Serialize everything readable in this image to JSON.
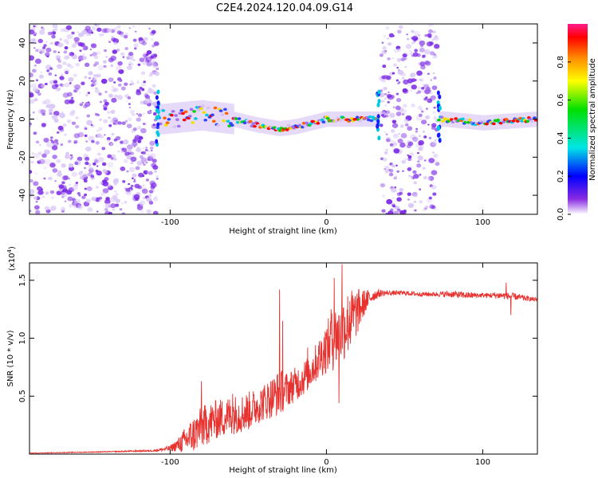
{
  "title": "C2E4.2024.120.04.09.G14",
  "colors": {
    "snr_line": "#e8322f",
    "spectrogram_scatter": "#7a28e6",
    "spectrogram_light": "#d9c6f7",
    "colorbar": [
      "#ff1a8c",
      "#ff0000",
      "#ff8c00",
      "#ffff00",
      "#00e000",
      "#00e6e6",
      "#0000ff",
      "#8a2be2",
      "#ffffff"
    ]
  },
  "chart_data": [
    {
      "type": "heatmap",
      "name_in_figure": "spectrogram",
      "xlabel": "Height of straight line (km)",
      "ylabel": "Frequency (Hz)",
      "xlim": [
        -190,
        135
      ],
      "ylim": [
        -50,
        50
      ],
      "x_ticks": [
        -100,
        0,
        100
      ],
      "y_ticks": [
        -40,
        -20,
        0,
        20,
        40
      ],
      "colorbar": {
        "label": "Normalized spectral amplitude",
        "range": [
          0.0,
          1.0
        ],
        "ticks": [
          0.0,
          0.2,
          0.4,
          0.6,
          0.8
        ]
      },
      "features": [
        {
          "description": "broadband noise",
          "x_range": [
            -190,
            -108
          ],
          "y_range": [
            -50,
            50
          ]
        },
        {
          "description": "signal band",
          "x_range": [
            -108,
            33
          ],
          "center_hz": [
            [
              -105,
              0
            ],
            [
              -80,
              2
            ],
            [
              -60,
              0
            ],
            [
              -45,
              -3
            ],
            [
              -30,
              -5
            ],
            [
              -20,
              -4
            ],
            [
              -10,
              -2
            ],
            [
              0,
              0
            ],
            [
              20,
              0
            ],
            [
              32,
              0
            ]
          ]
        },
        {
          "description": "broadband noise",
          "x_range": [
            35,
            71
          ],
          "y_range": [
            -50,
            50
          ]
        },
        {
          "description": "signal band",
          "x_range": [
            72,
            135
          ],
          "center_hz": [
            [
              75,
              0
            ],
            [
              100,
              -2
            ],
            [
              135,
              0
            ]
          ]
        }
      ]
    },
    {
      "type": "line",
      "name_in_figure": "snr",
      "xlabel": "Height of straight line (km)",
      "ylabel": "SNR (10 * v/v)",
      "y_multiplier_label": "(x10",
      "y_multiplier_exp": "4",
      "xlim": [
        -190,
        135
      ],
      "ylim": [
        0,
        16500
      ],
      "x_ticks": [
        -100,
        0,
        100
      ],
      "y_ticks": [
        5000,
        10000,
        15000
      ],
      "y_tick_labels": [
        "0.5",
        "1.0",
        "1.5"
      ],
      "series": [
        {
          "x": [
            -190,
            -140,
            -110,
            -100,
            -95,
            -90,
            -85,
            -80,
            -75,
            -70,
            -65,
            -60,
            -55,
            -50,
            -45,
            -40,
            -35,
            -30,
            -25,
            -20,
            -15,
            -10,
            -5,
            0,
            5,
            10,
            15,
            20,
            25,
            30,
            35,
            40,
            50,
            60,
            70,
            80,
            90,
            100,
            110,
            120,
            130,
            135
          ],
          "y": [
            80,
            200,
            300,
            500,
            800,
            1200,
            1700,
            2300,
            2700,
            3000,
            3200,
            3400,
            3500,
            3700,
            4100,
            4500,
            4900,
            5300,
            5600,
            6000,
            6500,
            7200,
            8200,
            9200,
            10000,
            10800,
            11500,
            12300,
            13200,
            13700,
            13900,
            13900,
            13900,
            13800,
            13800,
            13800,
            13700,
            13700,
            13700,
            13600,
            13400,
            13300
          ],
          "noise_amplitude": [
            20,
            40,
            80,
            250,
            600,
            1200,
            1600,
            1800,
            1800,
            1700,
            1700,
            1700,
            1700,
            1700,
            1600,
            1600,
            1800,
            2000,
            1500,
            1500,
            1500,
            1500,
            1800,
            2200,
            2800,
            3000,
            2800,
            2000,
            1000,
            500,
            300,
            200,
            200,
            200,
            200,
            300,
            300,
            200,
            300,
            300,
            200,
            200
          ],
          "spikes": [
            [
              -80,
              6300
            ],
            [
              -60,
              5200
            ],
            [
              -30,
              14200
            ],
            [
              -28,
              11500
            ],
            [
              -12,
              9200
            ],
            [
              3,
              12500
            ],
            [
              5,
              15200
            ],
            [
              8,
              4400
            ],
            [
              10,
              16400
            ],
            [
              15,
              13200
            ],
            [
              18,
              12800
            ],
            [
              115,
              14800
            ],
            [
              118,
              12000
            ]
          ]
        }
      ]
    }
  ]
}
